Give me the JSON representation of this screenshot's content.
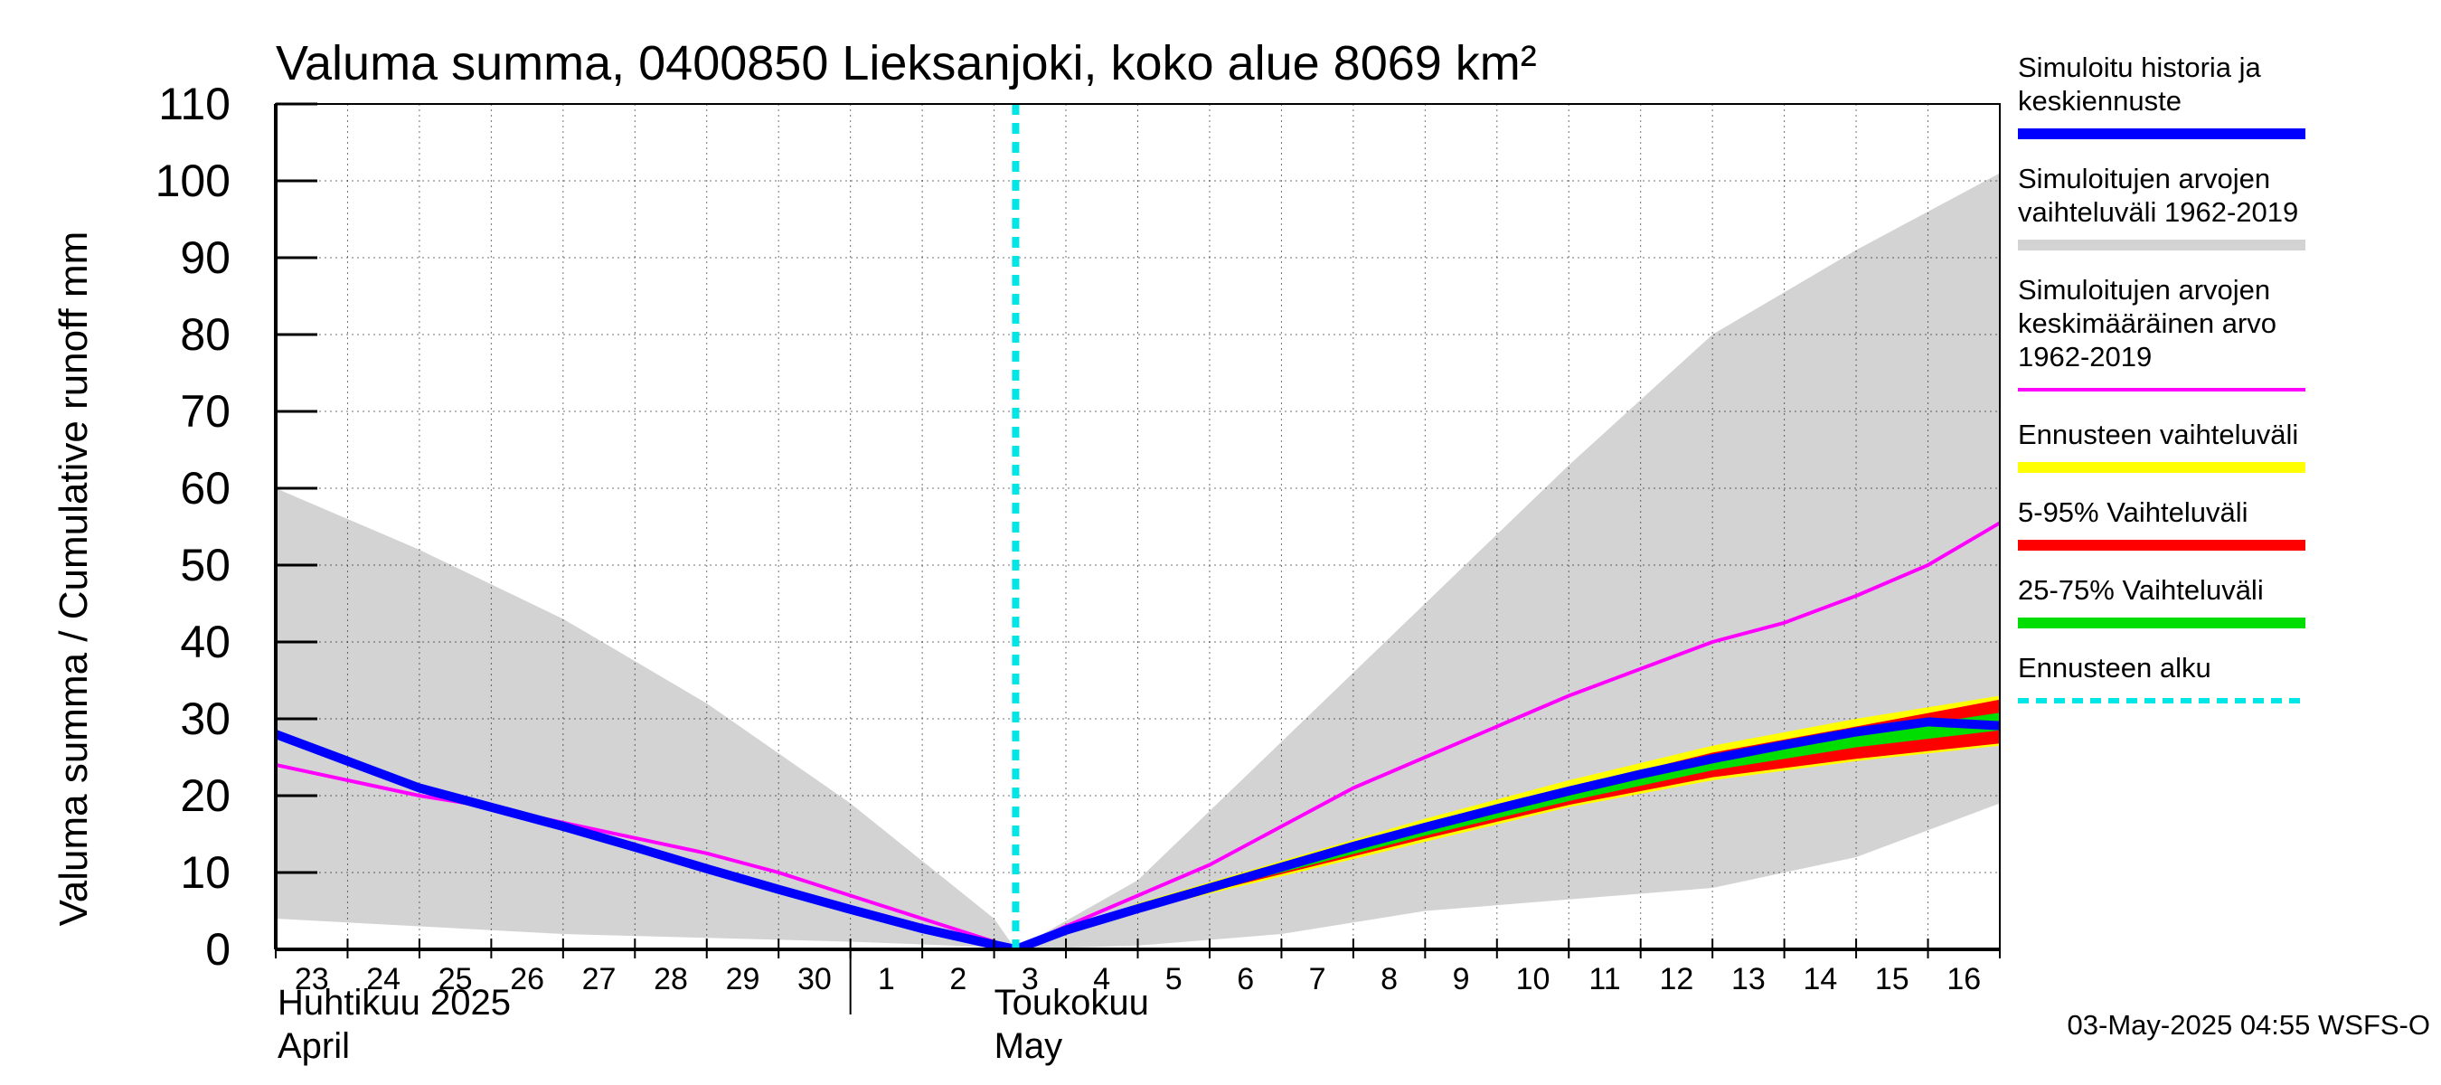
{
  "chart_data": {
    "type": "area",
    "title": "Valuma summa, 0400850 Lieksanjoki, koko alue 8069 km²",
    "ylabel": "Valuma summa / Cumulative runoff    mm",
    "ylim": [
      0,
      110
    ],
    "yticks": [
      0,
      10,
      20,
      30,
      40,
      50,
      60,
      70,
      80,
      90,
      100,
      110
    ],
    "x_day_labels": [
      "23",
      "24",
      "25",
      "26",
      "27",
      "28",
      "29",
      "30",
      "1",
      "2",
      "3",
      "4",
      "5",
      "6",
      "7",
      "8",
      "9",
      "10",
      "11",
      "12",
      "13",
      "14",
      "15",
      "16"
    ],
    "x_range_days": [
      0,
      24
    ],
    "month_labels": [
      {
        "fi": "Huhtikuu  2025",
        "en": "April"
      },
      {
        "fi": "Toukokuu",
        "en": "May"
      }
    ],
    "forecast_start_day": 10.3,
    "series": [
      {
        "name": "Simuloitujen arvojen vaihteluväli 1962-2019",
        "role": "hist_range",
        "color": "#d3d3d3",
        "x": [
          0,
          2,
          4,
          6,
          8,
          10,
          10.3,
          12,
          14,
          16,
          18,
          20,
          22,
          24
        ],
        "upper": [
          60,
          52,
          43,
          32,
          19,
          4,
          0,
          9,
          27,
          45,
          63,
          80,
          91,
          101
        ],
        "lower": [
          4,
          3,
          2,
          1.5,
          1,
          0.3,
          0,
          0.5,
          2,
          5,
          6.5,
          8,
          12,
          19
        ]
      },
      {
        "name": "Ennusteen vaihteluväli",
        "role": "forecast_range",
        "color": "#ffff00",
        "x": [
          10.3,
          12,
          14,
          16,
          18,
          20,
          22,
          24
        ],
        "upper": [
          0,
          6,
          11.5,
          17,
          22,
          26.5,
          30,
          33
        ],
        "lower": [
          0,
          5,
          9.5,
          14,
          18.5,
          22,
          24.5,
          26.5
        ]
      },
      {
        "name": "5-95% Vaihteluväli",
        "role": "range_5_95",
        "color": "#ff0000",
        "x": [
          10.3,
          12,
          14,
          16,
          18,
          20,
          22,
          24
        ],
        "upper": [
          0,
          5.8,
          11,
          16.2,
          21,
          25.6,
          29,
          32.5
        ],
        "lower": [
          0,
          5.2,
          9.8,
          14.4,
          18.8,
          22.4,
          24.8,
          26.8
        ]
      },
      {
        "name": "25-75% Vaihteluväli",
        "role": "range_25_75",
        "color": "#00dd00",
        "x": [
          10.3,
          12,
          14,
          16,
          18,
          20,
          22,
          24
        ],
        "upper": [
          0,
          5.6,
          10.5,
          15.5,
          20.3,
          24.6,
          28,
          30.8
        ],
        "lower": [
          0,
          5.3,
          10,
          14.8,
          19.3,
          23.3,
          26.3,
          28.5
        ]
      },
      {
        "name": "Simuloitujen arvojen keskimääräinen arvo 1962-2019",
        "role": "hist_mean",
        "color": "#ff00ff",
        "x": [
          0,
          1,
          2,
          3,
          4,
          5,
          6,
          7,
          8,
          9,
          10,
          10.3,
          11,
          12,
          13,
          14,
          15,
          16,
          17,
          18,
          19,
          20,
          21,
          22,
          23,
          24
        ],
        "values": [
          24,
          22,
          20,
          18.5,
          16.5,
          14.5,
          12.5,
          10,
          7,
          4,
          1,
          0,
          3,
          7,
          11,
          16,
          21,
          25,
          29,
          33,
          36.5,
          40,
          42.5,
          46,
          50,
          55.5
        ]
      },
      {
        "name": "Simuloitu historia ja keskiennuste",
        "role": "main",
        "color": "#0000ff",
        "x": [
          0,
          1,
          2,
          3,
          4,
          5,
          6,
          7,
          8,
          9,
          10,
          10.3,
          11,
          12,
          13,
          14,
          15,
          16,
          17,
          18,
          19,
          20,
          21,
          22,
          23,
          24
        ],
        "values": [
          28,
          24.5,
          21,
          18.5,
          16,
          13.3,
          10.5,
          7.8,
          5.2,
          2.7,
          0.6,
          0,
          2.5,
          5.3,
          8,
          10.7,
          13.4,
          15.9,
          18.3,
          20.6,
          22.8,
          24.8,
          26.6,
          28.3,
          29.6,
          29.1
        ]
      }
    ],
    "legend": [
      {
        "lines": [
          "Simuloitu historia ja",
          "keskiennuste"
        ],
        "color": "#0000ff",
        "style": "solid"
      },
      {
        "lines": [
          "Simuloitujen arvojen",
          "vaihteluväli 1962-2019"
        ],
        "color": "#d3d3d3",
        "style": "solid"
      },
      {
        "lines": [
          "Simuloitujen arvojen",
          "keskimääräinen arvo",
          "   1962-2019"
        ],
        "color": "#ff00ff",
        "style": "thin"
      },
      {
        "lines": [
          "Ennusteen vaihteluväli"
        ],
        "color": "#ffff00",
        "style": "solid"
      },
      {
        "lines": [
          "5-95% Vaihteluväli"
        ],
        "color": "#ff0000",
        "style": "solid"
      },
      {
        "lines": [
          "25-75% Vaihteluväli"
        ],
        "color": "#00dd00",
        "style": "solid"
      },
      {
        "lines": [
          "Ennusteen alku"
        ],
        "color": "#00e5e5",
        "style": "dashed"
      }
    ],
    "footer": "03-May-2025 04:55 WSFS-O"
  }
}
